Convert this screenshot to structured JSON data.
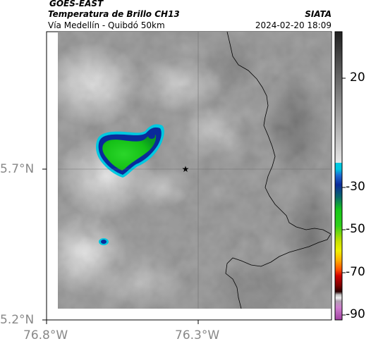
{
  "header": {
    "satellite": "GOES-EAST",
    "product": "Temperatura de Brillo CH13",
    "route": "Vía Medellín - Quibdó 50km",
    "agency": "SIATA",
    "timestamp": "2024-02-20 18:09"
  },
  "map": {
    "lat_labels": [
      "5.7°N",
      "5.2°N"
    ],
    "lon_labels": [
      "76.8°W",
      "76.3°W"
    ],
    "marker_icon": "star-icon"
  },
  "colorbar": {
    "tick_labels": [
      "20",
      "-30",
      "-50",
      "-70",
      "-90"
    ],
    "colors": {
      "warm_top": "#202020",
      "warm_bottom": "#e6e6e6",
      "cyan": "#00c8e0",
      "blue": "#0a2a9a",
      "green": "#16c818",
      "yellow": "#f0f000",
      "orange": "#ff8800",
      "red": "#d00000",
      "dark": "#2a0000",
      "magenta": "#c060c0"
    }
  }
}
